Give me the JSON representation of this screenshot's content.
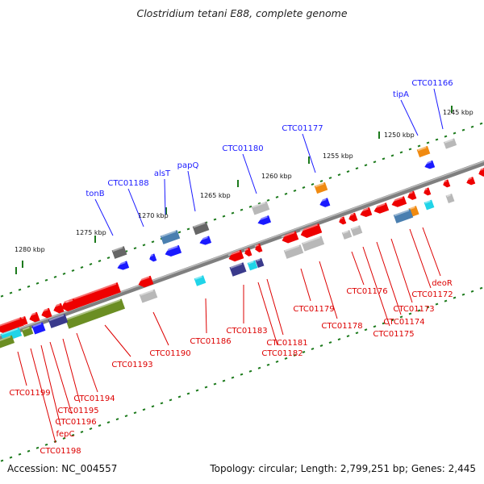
{
  "title": "Clostridium tetani E88, complete genome",
  "accession": "Accession: NC_004557",
  "topology": "Topology: circular; Length: 2,799,251 bp; Genes: 2,445",
  "colors": {
    "backbone": "#7f7f7f",
    "red": "#ee0000",
    "blue": "#1a1aff",
    "gray": "#b8b8b8",
    "dark_gray": "#666666",
    "steel_blue": "#4a7fb0",
    "orange": "#f08a10",
    "cyan": "#20d4e8",
    "navy": "#3a3a8c",
    "olive": "#6b8e23",
    "tick_green": "#1c7a1c",
    "blue_label": "#1a1aff",
    "red_label": "#dd0000"
  },
  "scale_labels": [
    "1245 kbp",
    "1250 kbp",
    "1255 kbp",
    "1260 kbp",
    "1265 kbp",
    "1270 kbp",
    "1275 kbp",
    "1280 kbp"
  ],
  "blue_gene_labels": [
    "CTC01166",
    "tipA",
    "CTC01177",
    "CTC01180",
    "papQ",
    "alsT",
    "CTC01188",
    "tonB"
  ],
  "red_gene_labels": [
    "deoR",
    "CTC01172",
    "CTC01173",
    "CTC01174",
    "CTC01175",
    "CTC01176",
    "CTC01178",
    "CTC01179",
    "CTC01181",
    "CTC01182",
    "CTC01183",
    "CTC01186",
    "CTC01190",
    "CTC01193",
    "CTC01194",
    "CTC01195",
    "CTC01196",
    "fepC",
    "CTC01198",
    "CTC01199"
  ]
}
